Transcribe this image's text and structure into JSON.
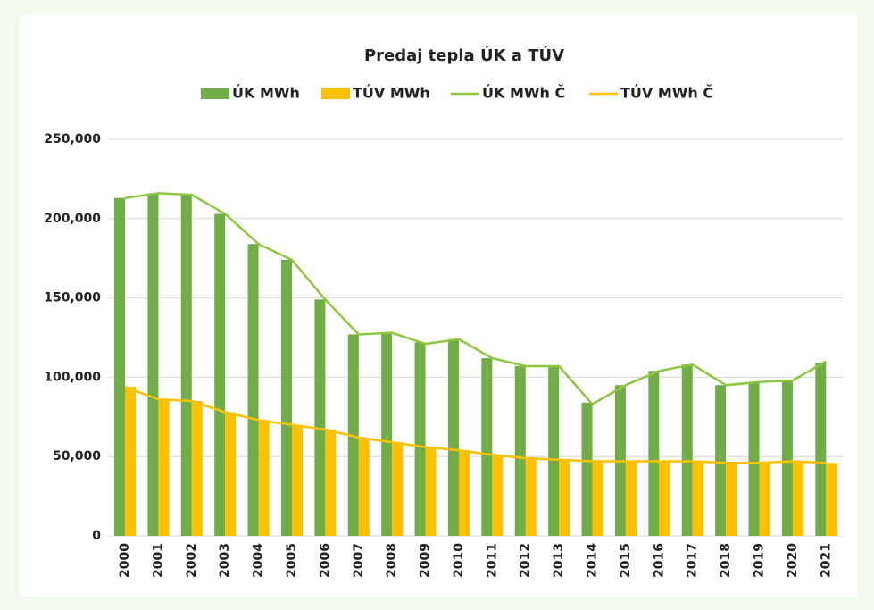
{
  "chart_data": {
    "type": "bar_line",
    "title": "Predaj tepla ÚK a TÚV",
    "categories": [
      "2000",
      "2001",
      "2002",
      "2003",
      "2004",
      "2005",
      "2006",
      "2007",
      "2008",
      "2009",
      "2010",
      "2011",
      "2012",
      "2013",
      "2014",
      "2015",
      "2016",
      "2017",
      "2018",
      "2019",
      "2020",
      "2021"
    ],
    "series": [
      {
        "name": "ÚK MWh",
        "kind": "bar",
        "color": "#70ad47",
        "values": [
          213000,
          216000,
          215000,
          203000,
          184000,
          174000,
          149000,
          127000,
          128000,
          122000,
          124000,
          112000,
          107000,
          107000,
          84000,
          95000,
          104000,
          108000,
          95000,
          97000,
          98000,
          109000
        ]
      },
      {
        "name": "TÚV MWh",
        "kind": "bar",
        "color": "#ffc000",
        "values": [
          94000,
          86000,
          85000,
          78000,
          73000,
          70000,
          67000,
          62000,
          59000,
          56000,
          54000,
          51000,
          49000,
          48000,
          47000,
          47000,
          47000,
          47000,
          46000,
          46000,
          47000,
          46000
        ]
      },
      {
        "name": "ÚK MWh Č",
        "kind": "line",
        "color": "#8dc63f",
        "values": [
          213000,
          216000,
          215000,
          203000,
          184000,
          174000,
          149000,
          127000,
          128000,
          121000,
          124000,
          112000,
          107000,
          107000,
          83000,
          95000,
          104000,
          108000,
          95000,
          97000,
          98000,
          110000
        ]
      },
      {
        "name": "TÚV MWh Č",
        "kind": "line",
        "color": "#ffc000",
        "values": [
          94000,
          86000,
          85000,
          78000,
          73000,
          70000,
          67000,
          62000,
          59000,
          56000,
          54000,
          51000,
          49000,
          48000,
          47000,
          47000,
          47000,
          47000,
          46000,
          46000,
          47000,
          46000
        ]
      }
    ],
    "ylim": [
      0,
      250000
    ],
    "yticks": [
      0,
      {
        "value": 50000,
        "label": "50,000"
      },
      {
        "value": 100000,
        "label": "100,000"
      },
      {
        "value": 150000,
        "label": "150,000"
      },
      {
        "value": 200000,
        "label": "200,000"
      },
      {
        "value": 250000,
        "label": "250,000"
      }
    ],
    "grid": true,
    "legend": "top"
  }
}
